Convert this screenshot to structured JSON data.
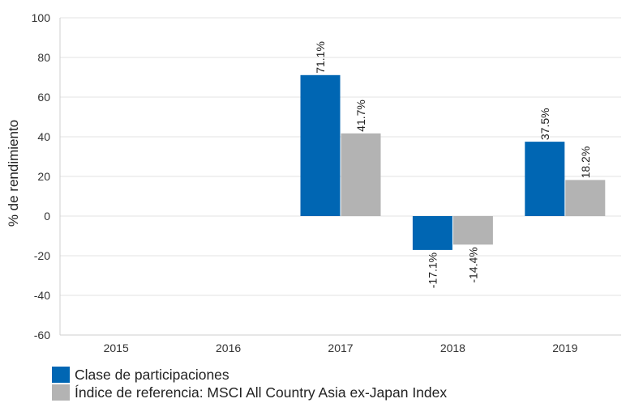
{
  "chart_data": {
    "type": "bar",
    "categories": [
      "2015",
      "2016",
      "2017",
      "2018",
      "2019"
    ],
    "series": [
      {
        "name": "Clase de participaciones",
        "color": "#0066b3",
        "values": [
          null,
          null,
          71.1,
          -17.1,
          37.5
        ],
        "labels": [
          "",
          "",
          "71.1%",
          "-17.1%",
          "37.5%"
        ]
      },
      {
        "name": "Índice de referencia: MSCI All Country Asia ex-Japan Index",
        "color": "#b3b3b3",
        "values": [
          null,
          null,
          41.7,
          -14.4,
          18.2
        ],
        "labels": [
          "",
          "",
          "41.7%",
          "-14.4%",
          "18.2%"
        ]
      }
    ],
    "ylabel": "% de rendimiento",
    "xlabel": "",
    "ylim": [
      -60,
      100
    ],
    "yticks": [
      -60,
      -40,
      -20,
      0,
      20,
      40,
      60,
      80,
      100
    ],
    "ytick_labels": [
      "-60",
      "-40",
      "-20",
      "0",
      "20",
      "40",
      "60",
      "80",
      "100"
    ],
    "grid": true,
    "legend_position": "bottom-left"
  }
}
